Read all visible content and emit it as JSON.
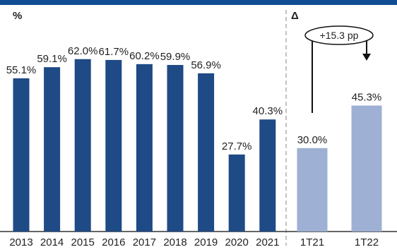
{
  "chart_data": {
    "type": "bar",
    "unit_label": "%",
    "delta_label": "Δ",
    "colors": {
      "top_band": "#0f4c92",
      "annual_bar": "#1e4a85",
      "quarter_bar": "#9eb0d3",
      "divider": "#9a9a9a",
      "axis": "#333333",
      "text": "#222222"
    },
    "annual": {
      "categories": [
        "2013",
        "2014",
        "2015",
        "2016",
        "2017",
        "2018",
        "2019",
        "2020",
        "2021"
      ],
      "values": [
        55.1,
        59.1,
        62.0,
        61.7,
        60.2,
        59.9,
        56.9,
        27.7,
        40.3
      ],
      "labels": [
        "55.1%",
        "59.1%",
        "62.0%",
        "61.7%",
        "60.2%",
        "59.9%",
        "56.9%",
        "27.7%",
        "40.3%"
      ]
    },
    "quarterly": {
      "categories": [
        "1T21",
        "1T22"
      ],
      "values": [
        30.0,
        45.3
      ],
      "labels": [
        "30.0%",
        "45.3%"
      ]
    },
    "change_annotation": "+15.3 pp",
    "ylim": [
      0,
      66
    ]
  }
}
